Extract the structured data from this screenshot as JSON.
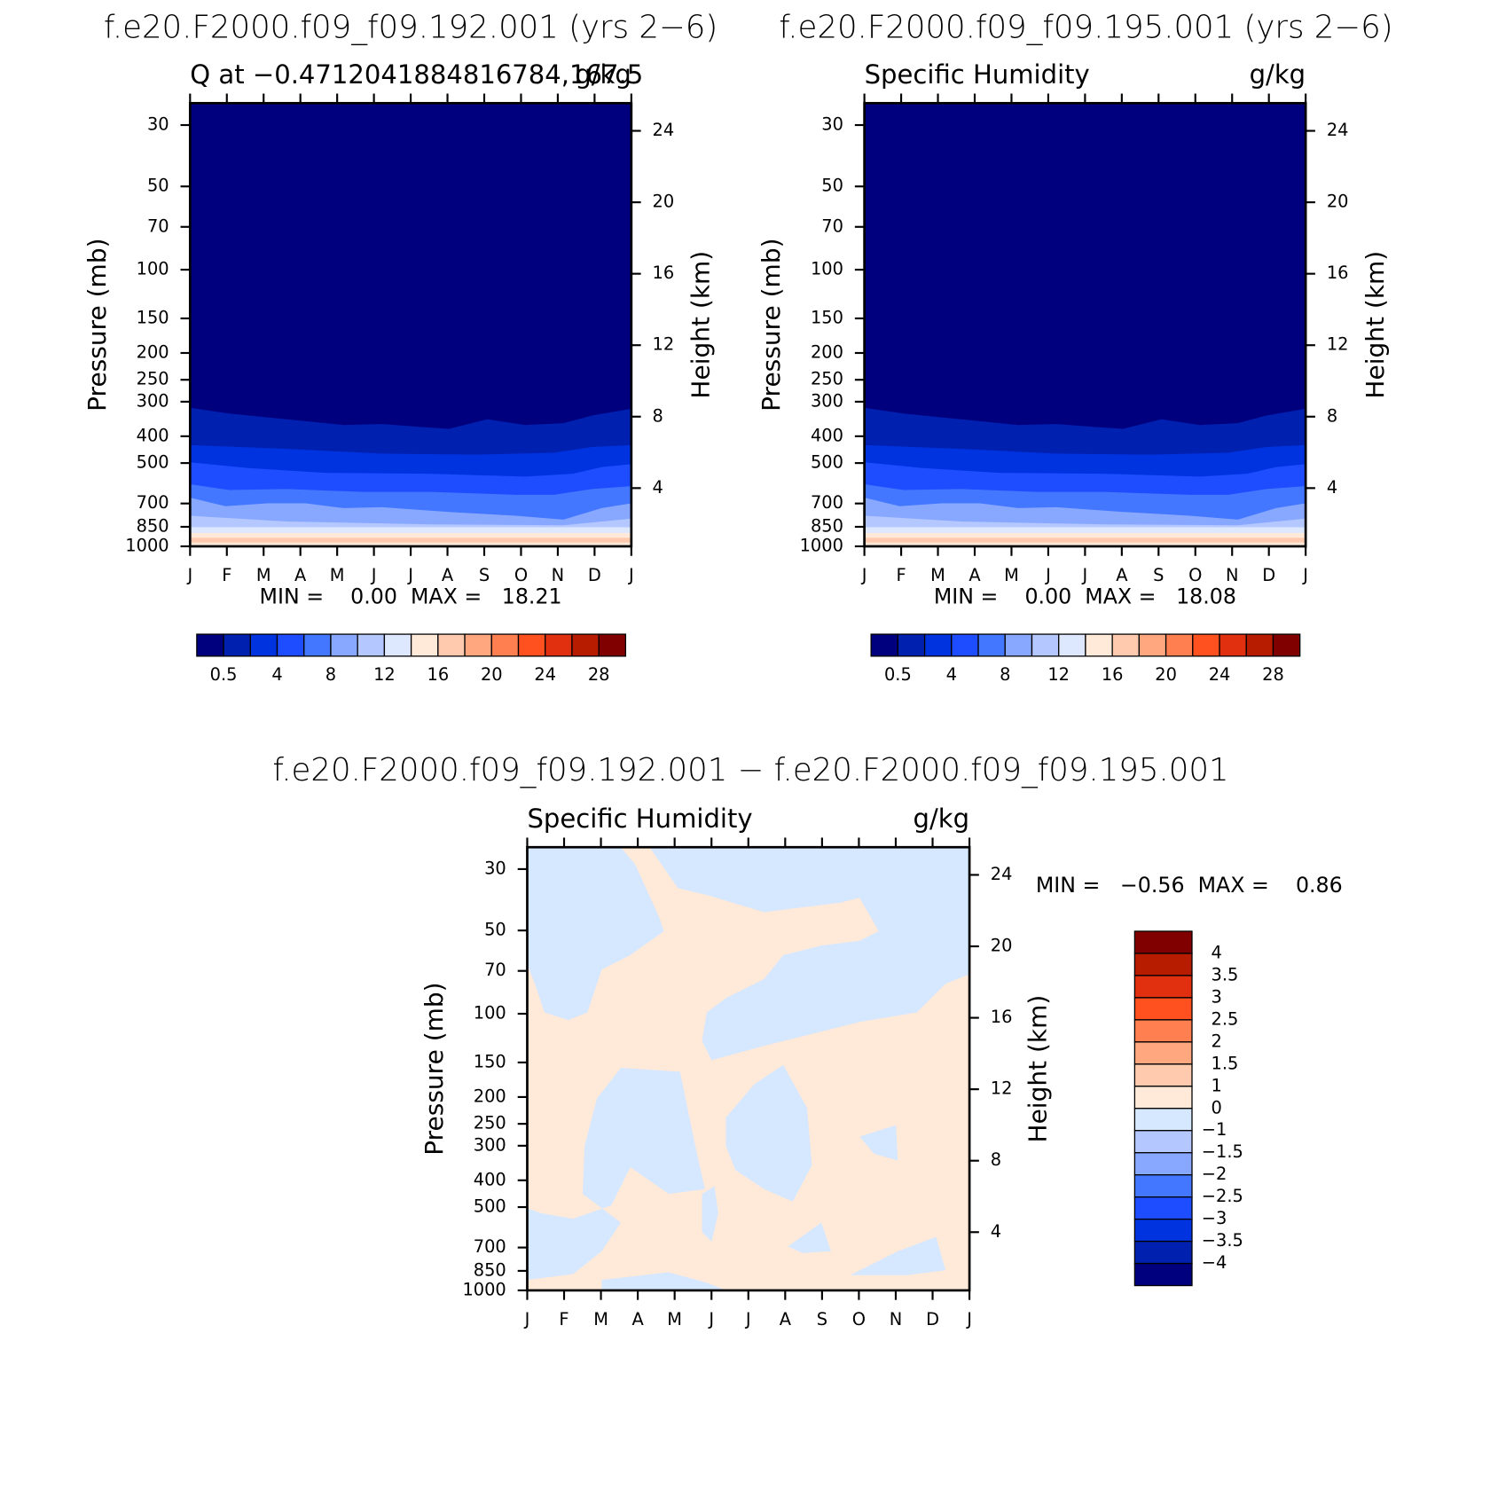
{
  "chart_data": [
    {
      "type": "contour",
      "suptitle": "f.e20.F2000.f09_f09.192.001 (yrs 2−6)",
      "title": "Q at −0.4712041884816784,167.5",
      "units": "g/kg",
      "ylabel": "Pressure (mb)",
      "y2label": "Height (km)",
      "ylog": true,
      "ylim": [
        1000,
        25
      ],
      "yticks": [
        30,
        50,
        70,
        100,
        150,
        200,
        250,
        300,
        400,
        500,
        700,
        850,
        1000
      ],
      "y2lim": [
        0.74,
        25.55
      ],
      "y2ticks": [
        4,
        8,
        12,
        16,
        20,
        24
      ],
      "categories": [
        "J",
        "F",
        "M",
        "A",
        "M",
        "J",
        "J",
        "A",
        "S",
        "O",
        "N",
        "D",
        "J"
      ],
      "stats": "MIN =    0.00  MAX =   18.21",
      "colorbar": {
        "colors": [
          "#00007f",
          "#0021b0",
          "#0033e0",
          "#1e4cff",
          "#4477ff",
          "#88a8ff",
          "#b4c8ff",
          "#dde8ff",
          "#ffe9d8",
          "#ffcaae",
          "#ffa880",
          "#ff7f50",
          "#ff5020",
          "#e03010",
          "#b81c00",
          "#800000"
        ],
        "labels": [
          0.5,
          4,
          8,
          12,
          16,
          20,
          24,
          28
        ]
      }
    },
    {
      "type": "contour",
      "suptitle": "f.e20.F2000.f09_f09.195.001 (yrs 2−6)",
      "title": "Specific Humidity",
      "units": "g/kg",
      "ylabel": "Pressure (mb)",
      "y2label": "Height (km)",
      "ylog": true,
      "ylim": [
        1000,
        25
      ],
      "yticks": [
        30,
        50,
        70,
        100,
        150,
        200,
        250,
        300,
        400,
        500,
        700,
        850,
        1000
      ],
      "y2lim": [
        0.74,
        25.55
      ],
      "y2ticks": [
        4,
        8,
        12,
        16,
        20,
        24
      ],
      "categories": [
        "J",
        "F",
        "M",
        "A",
        "M",
        "J",
        "J",
        "A",
        "S",
        "O",
        "N",
        "D",
        "J"
      ],
      "stats": "MIN =    0.00  MAX =   18.08",
      "colorbar": {
        "colors": [
          "#00007f",
          "#0021b0",
          "#0033e0",
          "#1e4cff",
          "#4477ff",
          "#88a8ff",
          "#b4c8ff",
          "#dde8ff",
          "#ffe9d8",
          "#ffcaae",
          "#ffa880",
          "#ff7f50",
          "#ff5020",
          "#e03010",
          "#b81c00",
          "#800000"
        ],
        "labels": [
          0.5,
          4,
          8,
          12,
          16,
          20,
          24,
          28
        ]
      }
    },
    {
      "type": "contour",
      "suptitle": "f.e20.F2000.f09_f09.192.001 − f.e20.F2000.f09_f09.195.001",
      "title": "Specific Humidity",
      "units": "g/kg",
      "ylabel": "Pressure (mb)",
      "y2label": "Height (km)",
      "ylog": true,
      "ylim": [
        1000,
        25
      ],
      "yticks": [
        30,
        50,
        70,
        100,
        150,
        200,
        250,
        300,
        400,
        500,
        700,
        850,
        1000
      ],
      "y2lim": [
        0.74,
        25.55
      ],
      "y2ticks": [
        4,
        8,
        12,
        16,
        20,
        24
      ],
      "categories": [
        "J",
        "F",
        "M",
        "A",
        "M",
        "J",
        "J",
        "A",
        "S",
        "O",
        "N",
        "D",
        "J"
      ],
      "stats": "MIN =   −0.56  MAX =    0.86",
      "colorbar": {
        "colors": [
          "#800000",
          "#b81c00",
          "#e03010",
          "#ff5020",
          "#ff7f50",
          "#ffa880",
          "#ffcaae",
          "#ffe9d8",
          "#d6e8ff",
          "#b4c8ff",
          "#88a8ff",
          "#4477ff",
          "#1e4cff",
          "#0033e0",
          "#0021b0",
          "#00007f"
        ],
        "labels": [
          4,
          3.5,
          3,
          2.5,
          2,
          1.5,
          1,
          0,
          {
            "value": -1,
            "label": "−1"
          },
          {
            "value": -1.5,
            "label": "−1.5"
          },
          {
            "value": -2,
            "label": "−2"
          },
          {
            "value": -2.5,
            "label": "−2.5"
          },
          {
            "value": -3,
            "label": "−3"
          },
          {
            "value": -3.5,
            "label": "−3.5"
          },
          {
            "value": -4,
            "label": "−4"
          }
        ]
      }
    }
  ]
}
